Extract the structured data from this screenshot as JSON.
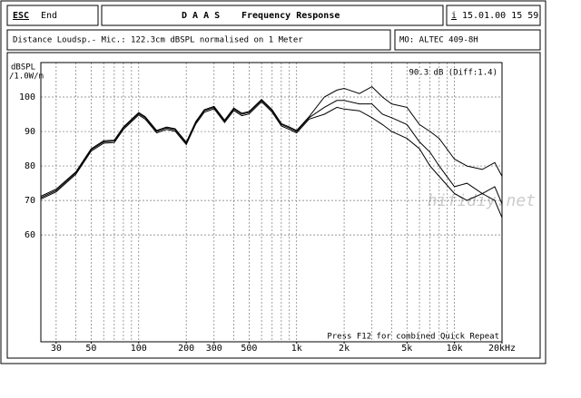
{
  "header": {
    "esc_key": "ESC",
    "esc_label": "End",
    "app": "D A A S",
    "title": "Frequency Response",
    "info_key": "i",
    "datetime": "15.01.00 15 59",
    "measurement": "Distance Loudsp.- Mic.: 122.3cm dBSPL normalised on 1 Meter",
    "model": "MO: ALTEC 409-8H"
  },
  "watermark": "hifidiy.net",
  "chart_data": {
    "type": "line",
    "y_label": [
      "dBSPL",
      "/1.0W/m"
    ],
    "annotations": [
      "90.3 dB (Diff:1.4)",
      "Press F12 for combined Quick Repeat"
    ],
    "x": [
      24,
      30,
      40,
      50,
      60,
      70,
      80,
      100,
      110,
      130,
      150,
      170,
      200,
      230,
      260,
      300,
      350,
      400,
      450,
      500,
      600,
      700,
      800,
      900,
      1000,
      1200,
      1500,
      1800,
      2000,
      2500,
      3000,
      3500,
      4000,
      5000,
      6000,
      7000,
      8000,
      10000,
      12000,
      15000,
      18000,
      20000
    ],
    "series": [
      {
        "color": "#000000",
        "values": [
          71.2,
          73.3,
          78.3,
          85,
          87.3,
          87.5,
          91.3,
          95.5,
          94.3,
          90.3,
          91.3,
          90.8,
          86.9,
          92.9,
          96.3,
          97.3,
          93.3,
          96.8,
          95.3,
          95.8,
          99.3,
          96.3,
          92.3,
          91.3,
          90.3,
          94.3,
          100,
          102,
          102.5,
          101,
          103,
          100,
          98,
          97,
          92,
          90,
          88,
          82,
          80,
          79,
          81,
          77
        ]
      },
      {
        "color": "#000000",
        "values": [
          70.8,
          72.9,
          78,
          84.7,
          87,
          87.2,
          91,
          95.2,
          94,
          90,
          91,
          90.5,
          86.6,
          92.6,
          96,
          97,
          93,
          96.5,
          95,
          95.5,
          99,
          96,
          92,
          91,
          90,
          94,
          97,
          99,
          99,
          98,
          98,
          95,
          94,
          92,
          87,
          84,
          80,
          74,
          75,
          72,
          74,
          69
        ]
      },
      {
        "color": "#000000",
        "values": [
          70.4,
          72.5,
          77.6,
          84.3,
          86.6,
          86.8,
          90.6,
          94.8,
          93.6,
          89.6,
          90.6,
          90.1,
          86.2,
          92.2,
          95.6,
          96.6,
          92.6,
          96.1,
          94.6,
          95.1,
          98.6,
          95.6,
          91.6,
          90.6,
          89.6,
          93.6,
          95,
          97,
          96.5,
          96,
          94,
          92,
          90,
          88,
          85,
          80,
          77,
          72,
          70,
          72,
          70,
          65
        ]
      }
    ],
    "xlim": [
      24,
      20000
    ],
    "log_x": true,
    "ylim": [
      29,
      110
    ],
    "xticks": [
      30,
      50,
      100,
      200,
      300,
      500,
      {
        "value": 1000,
        "label": "1k"
      },
      {
        "value": 2000,
        "label": "2k"
      },
      {
        "value": 5000,
        "label": "5k"
      },
      {
        "value": 10000,
        "label": "10k"
      },
      {
        "value": 20000,
        "label": "20kHz"
      }
    ],
    "yticks": [
      60,
      70,
      80,
      90,
      100
    ],
    "grid": true,
    "minor_grid": true
  }
}
